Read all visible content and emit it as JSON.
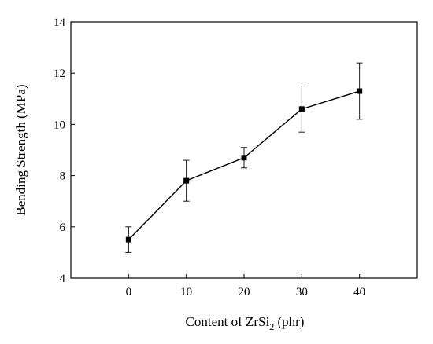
{
  "chart_data": {
    "type": "line",
    "xlabel": "Content of ZrSi",
    "xlabel_subscript": "2",
    "xlabel_suffix": " (phr)",
    "ylabel": "Bending Strength (MPa)",
    "xlim": [
      -10,
      50
    ],
    "ylim": [
      4,
      14
    ],
    "x_ticks": [
      0,
      10,
      20,
      30,
      40
    ],
    "y_ticks": [
      4,
      6,
      8,
      10,
      12,
      14
    ],
    "grid": false,
    "series": [
      {
        "x": [
          0,
          10,
          20,
          30,
          40
        ],
        "y": [
          5.5,
          7.8,
          8.7,
          10.6,
          11.3
        ],
        "error": [
          0.5,
          0.8,
          0.4,
          0.9,
          1.1
        ],
        "marker": "square",
        "color": "#000000"
      }
    ]
  }
}
